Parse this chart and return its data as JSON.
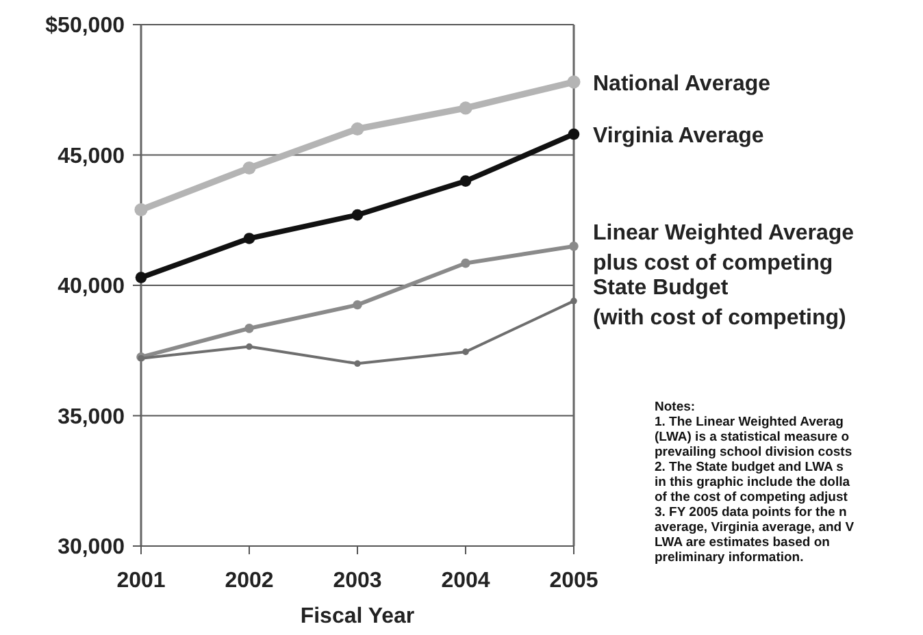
{
  "chart_data": {
    "type": "line",
    "xlabel": "Fiscal Year",
    "categories": [
      "2001",
      "2002",
      "2003",
      "2004",
      "2005"
    ],
    "ylim": [
      30000,
      50000
    ],
    "yticks": [
      {
        "value": 30000,
        "label": "30,000"
      },
      {
        "value": 35000,
        "label": "35,000"
      },
      {
        "value": 40000,
        "label": "40,000"
      },
      {
        "value": 45000,
        "label": "45,000"
      },
      {
        "value": 50000,
        "label": "$50,000"
      }
    ],
    "grid": "y",
    "marker": "circle",
    "legend": "right",
    "series": [
      {
        "name": "National Average",
        "color": "#b4b4b4",
        "values": [
          42900,
          44500,
          46000,
          46800,
          47800
        ]
      },
      {
        "name": "Virginia Average",
        "color": "#111111",
        "values": [
          40300,
          41800,
          42700,
          44000,
          45800
        ]
      },
      {
        "name": "Linear Weighted Average\nplus cost of competing",
        "color": "#8a8a8a",
        "values": [
          37250,
          38350,
          39250,
          40850,
          41500
        ]
      },
      {
        "name": "State Budget\n(with cost of competing)",
        "color": "#6e6e6e",
        "values": [
          37200,
          37650,
          37000,
          37450,
          39400
        ]
      }
    ],
    "annotations": [
      "Notes:",
      "1.  The  Linear Weighted Averag",
      "(LWA) is a statistical measure o",
      "prevailing school division costs",
      " 2.  The State budget and LWA s",
      "in this graphic include the dolla",
      "of the cost of competing adjust",
      "3.  FY 2005 data points for the n",
      "average, Virginia average, and V",
      "LWA are estimates based on",
      "preliminary information."
    ]
  }
}
